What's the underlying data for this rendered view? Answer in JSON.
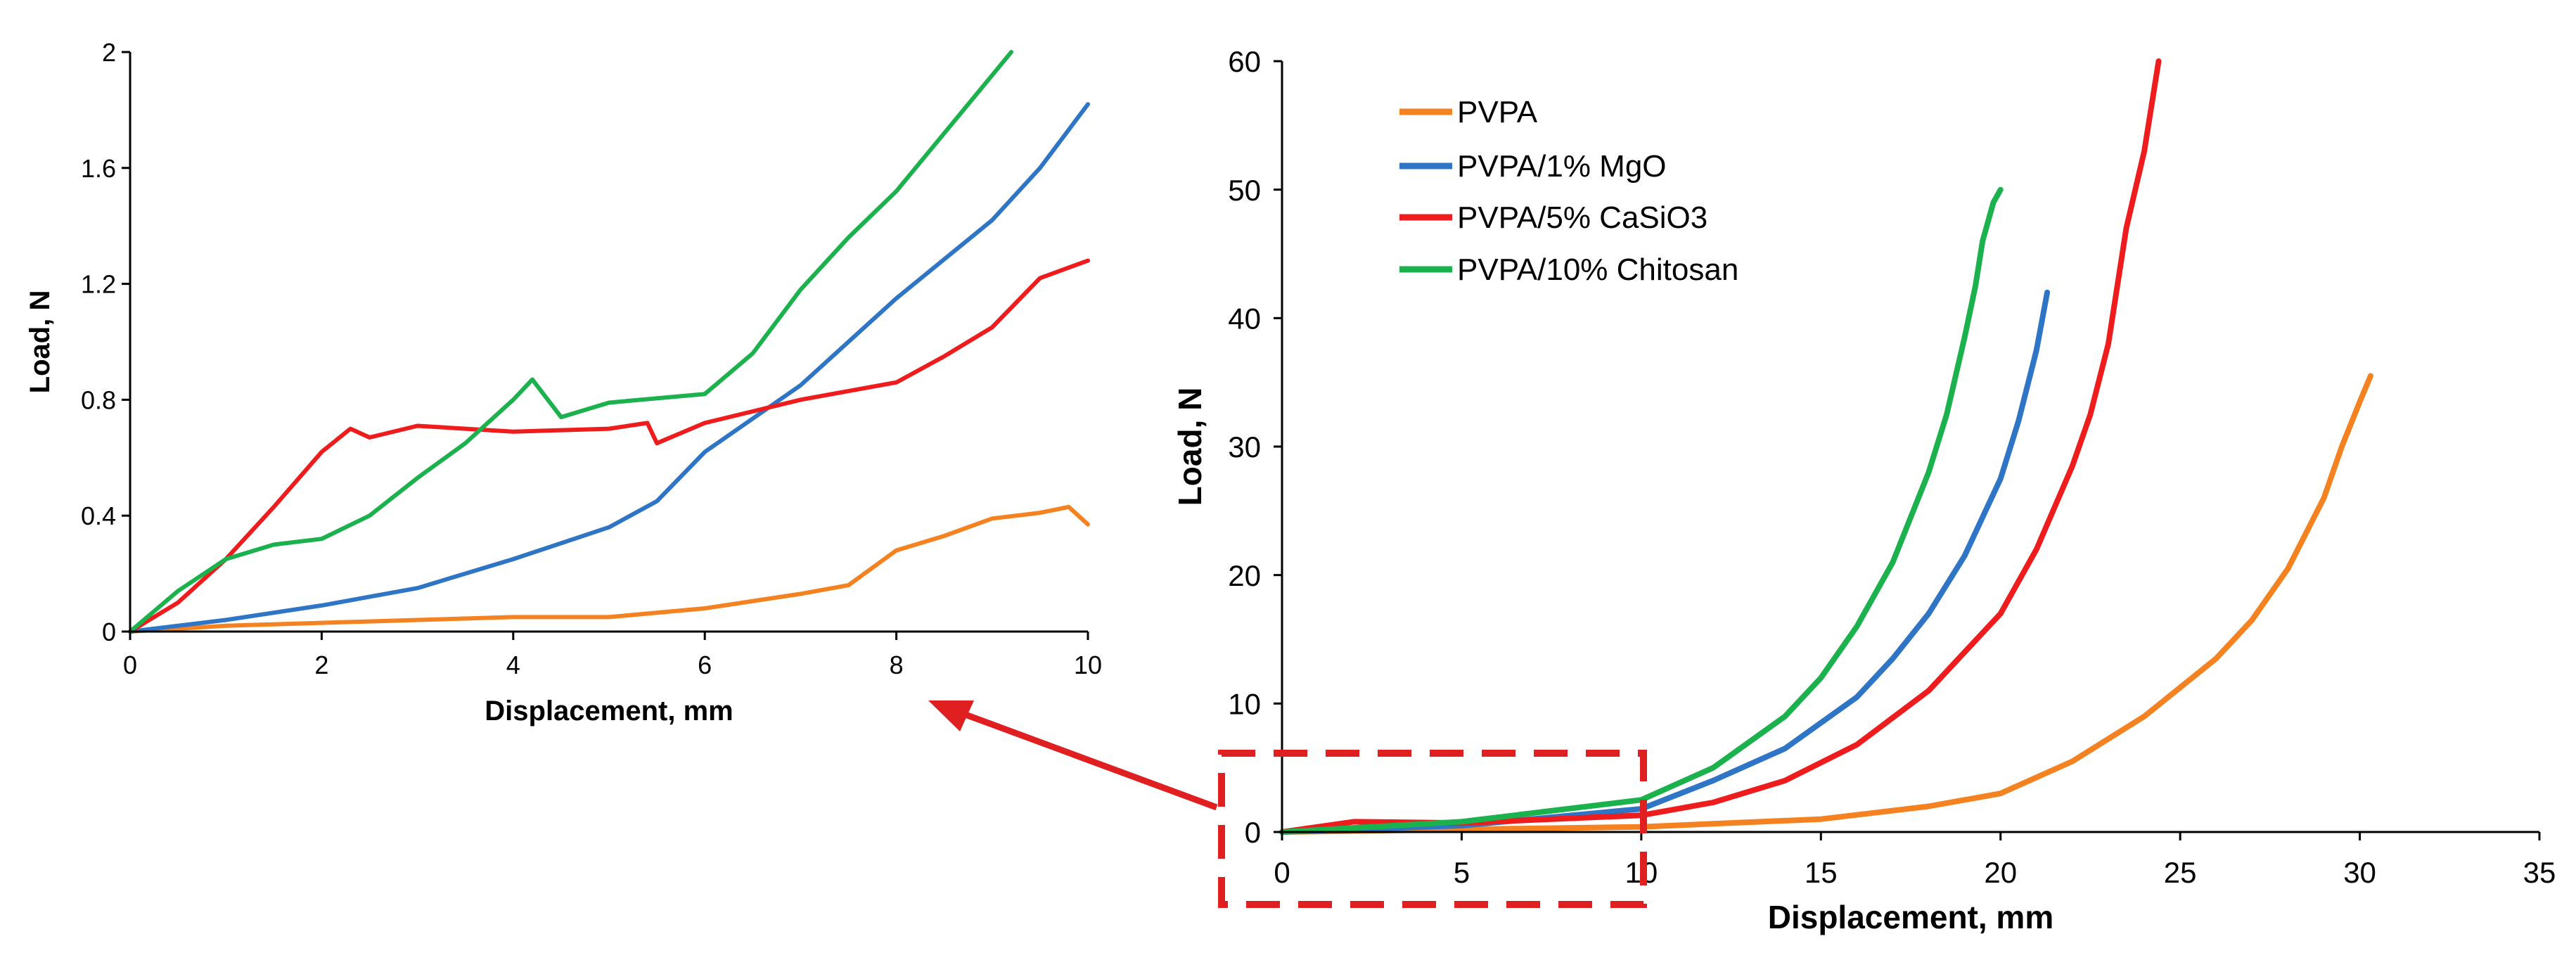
{
  "colors": {
    "PVPA": "#F58220",
    "PVPA/1% MgO": "#2E75C6",
    "PVPA/5% CaSiO3": "#EE1C1C",
    "PVPA/10% Chitosan": "#1BB14C",
    "zoom_box": "#E02020"
  },
  "chart_data": [
    {
      "type": "line",
      "xlabel": "Displacement, mm",
      "ylabel": "Load, N",
      "xlim": [
        0,
        10
      ],
      "ylim": [
        0,
        2
      ],
      "x_ticks": [
        "0",
        "2",
        "4",
        "6",
        "8",
        "10"
      ],
      "y_ticks": [
        "0",
        "0.4",
        "0.8",
        "1.2",
        "1.6",
        "2"
      ],
      "grid": false,
      "legend": "none",
      "series": [
        {
          "name": "PVPA",
          "x": [
            0,
            1,
            2,
            3,
            4,
            5,
            6,
            7,
            7.5,
            8,
            8.5,
            9,
            9.5,
            9.8,
            10
          ],
          "y": [
            0,
            0.02,
            0.03,
            0.04,
            0.05,
            0.05,
            0.08,
            0.13,
            0.16,
            0.28,
            0.33,
            0.39,
            0.41,
            0.43,
            0.37
          ]
        },
        {
          "name": "PVPA/1% MgO",
          "x": [
            0,
            1,
            2,
            3,
            4,
            5,
            5.5,
            6,
            7,
            8,
            9,
            9.5,
            10
          ],
          "y": [
            0,
            0.04,
            0.09,
            0.15,
            0.25,
            0.36,
            0.45,
            0.62,
            0.85,
            1.15,
            1.42,
            1.6,
            1.82
          ]
        },
        {
          "name": "PVPA/5% CaSiO3",
          "x": [
            0,
            0.5,
            1,
            1.5,
            2,
            2.3,
            2.5,
            3,
            3.5,
            4,
            5,
            5.4,
            5.5,
            6,
            7,
            8,
            8.5,
            9,
            9.5,
            10
          ],
          "y": [
            0,
            0.1,
            0.25,
            0.43,
            0.62,
            0.7,
            0.67,
            0.71,
            0.7,
            0.69,
            0.7,
            0.72,
            0.65,
            0.72,
            0.8,
            0.86,
            0.95,
            1.05,
            1.22,
            1.28
          ]
        },
        {
          "name": "PVPA/10% Chitosan",
          "x": [
            0,
            0.5,
            1,
            1.5,
            2,
            2.5,
            3,
            3.5,
            4,
            4.2,
            4.5,
            5,
            6,
            6.5,
            7,
            7.5,
            8,
            8.5,
            9,
            9.2
          ],
          "y": [
            0,
            0.14,
            0.25,
            0.3,
            0.32,
            0.4,
            0.53,
            0.65,
            0.8,
            0.87,
            0.74,
            0.79,
            0.82,
            0.96,
            1.18,
            1.36,
            1.52,
            1.72,
            1.92,
            2.0
          ]
        }
      ]
    },
    {
      "type": "line",
      "xlabel": "Displacement, mm",
      "ylabel": "Load, N",
      "xlim": [
        0,
        35
      ],
      "ylim": [
        0,
        60
      ],
      "x_ticks": [
        "0",
        "5",
        "10",
        "15",
        "20",
        "25",
        "30",
        "35"
      ],
      "y_ticks": [
        "0",
        "10",
        "20",
        "30",
        "40",
        "50",
        "60"
      ],
      "grid": false,
      "legend": "top-left",
      "legend_entries": [
        "PVPA",
        "PVPA/1% MgO",
        "PVPA/5% CaSiO3",
        "PVPA/10% Chitosan"
      ],
      "series": [
        {
          "name": "PVPA",
          "x": [
            0,
            10,
            15,
            18,
            20,
            22,
            24,
            26,
            27,
            28,
            29,
            29.5,
            30,
            30.3
          ],
          "y": [
            0,
            0.4,
            1.0,
            2.0,
            3.0,
            5.5,
            9.0,
            13.5,
            16.5,
            20.5,
            26,
            30,
            33.5,
            35.5
          ]
        },
        {
          "name": "PVPA/1% MgO",
          "x": [
            0,
            5,
            10,
            12,
            14,
            16,
            17,
            18,
            19,
            20,
            20.5,
            21,
            21.3
          ],
          "y": [
            0,
            0.5,
            1.8,
            4.0,
            6.5,
            10.5,
            13.5,
            17.0,
            21.5,
            27.5,
            32,
            37.5,
            42.0
          ]
        },
        {
          "name": "PVPA/5% CaSiO3",
          "x": [
            0,
            2,
            5,
            10,
            12,
            14,
            16,
            18,
            20,
            21,
            22,
            22.5,
            23,
            23.5,
            24,
            24.4
          ],
          "y": [
            0,
            0.8,
            0.7,
            1.3,
            2.3,
            4.0,
            6.8,
            11.0,
            17.0,
            22.0,
            28.5,
            32.5,
            38.0,
            47.0,
            53.0,
            60.0
          ]
        },
        {
          "name": "PVPA/10% Chitosan",
          "x": [
            0,
            5,
            10,
            12,
            14,
            15,
            16,
            17,
            18,
            18.5,
            19,
            19.3,
            19.5,
            19.8,
            20.0
          ],
          "y": [
            0,
            0.8,
            2.5,
            5.0,
            9.0,
            12.0,
            16.0,
            21.0,
            28.0,
            32.5,
            38.5,
            42.5,
            46.0,
            49.0,
            50.0
          ]
        }
      ]
    }
  ]
}
